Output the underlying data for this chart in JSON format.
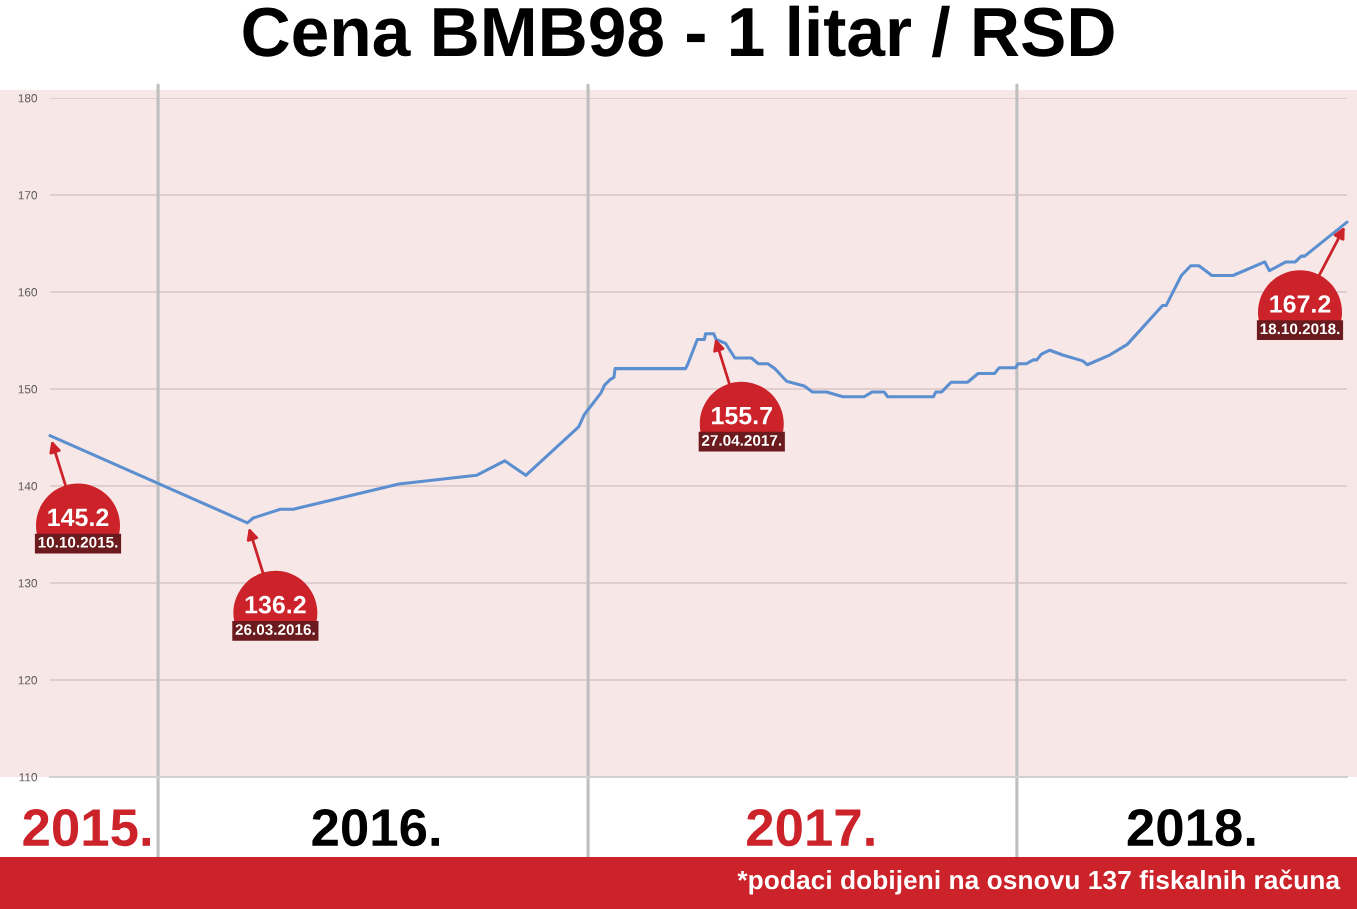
{
  "chart_data": {
    "type": "line",
    "title": "Cena BMB98 - 1 litar / RSD",
    "x": [
      "2015-10-10",
      "2016-03-26",
      "2016-03-31",
      "2016-04-23",
      "2016-05-04",
      "2016-08-02",
      "2016-10-07",
      "2016-10-31",
      "2016-11-18",
      "2017-01-02",
      "2017-01-07",
      "2017-01-21",
      "2017-01-24",
      "2017-01-29",
      "2017-02-01",
      "2017-02-02",
      "2017-04-03",
      "2017-04-05",
      "2017-04-13",
      "2017-04-19",
      "2017-04-20",
      "2017-04-27",
      "2017-04-29",
      "2017-05-07",
      "2017-05-15",
      "2017-05-29",
      "2017-06-04",
      "2017-06-12",
      "2017-06-18",
      "2017-06-28",
      "2017-07-13",
      "2017-07-20",
      "2017-08-01",
      "2017-08-15",
      "2017-09-02",
      "2017-09-09",
      "2017-09-19",
      "2017-09-22",
      "2017-10-31",
      "2017-11-02",
      "2017-11-07",
      "2017-11-15",
      "2017-11-29",
      "2017-12-08",
      "2017-12-22",
      "2017-12-26",
      "2018-01-09",
      "2018-01-11",
      "2018-01-18",
      "2018-01-24",
      "2018-01-27",
      "2018-01-31",
      "2018-02-07",
      "2018-02-18",
      "2018-03-07",
      "2018-03-11",
      "2018-03-30",
      "2018-04-14",
      "2018-05-14",
      "2018-05-17",
      "2018-05-30",
      "2018-06-07",
      "2018-06-14",
      "2018-06-25",
      "2018-07-13",
      "2018-08-09",
      "2018-08-13",
      "2018-08-27",
      "2018-09-04",
      "2018-09-09",
      "2018-09-12",
      "2018-10-18"
    ],
    "series": [
      {
        "color": "#5b8fd0",
        "values": [
          145.2,
          136.2,
          136.7,
          137.6,
          137.6,
          140.2,
          141.1,
          142.6,
          141.1,
          146.1,
          147.4,
          149.6,
          150.4,
          151.0,
          151.2,
          152.1,
          152.1,
          152.6,
          155.1,
          155.1,
          155.7,
          155.7,
          155.1,
          154.7,
          153.2,
          153.2,
          152.6,
          152.6,
          152.1,
          150.8,
          150.3,
          149.7,
          149.7,
          149.2,
          149.2,
          149.7,
          149.7,
          149.2,
          149.2,
          149.7,
          149.7,
          150.7,
          150.7,
          151.6,
          151.6,
          152.2,
          152.2,
          152.6,
          152.6,
          153.0,
          153.0,
          153.6,
          154.0,
          153.5,
          152.9,
          152.5,
          153.5,
          154.6,
          158.6,
          158.6,
          161.7,
          162.7,
          162.7,
          161.7,
          161.7,
          163.1,
          162.2,
          163.1,
          163.1,
          163.7,
          163.7,
          167.2
        ]
      }
    ],
    "xlim": [
      "2015-10-10",
      "2018-10-18"
    ],
    "xticks": [
      {
        "value": "2015-11-11",
        "label": "2015."
      },
      {
        "value": "2016-07-14",
        "label": "2016."
      },
      {
        "value": "2017-07-19",
        "label": "2017."
      },
      {
        "value": "2018-06-08",
        "label": "2018."
      }
    ],
    "ylim": [
      110,
      180
    ],
    "yticks": [
      110,
      120,
      130,
      140,
      150,
      160,
      170,
      180
    ],
    "grid": "y",
    "ref_lines": [
      {
        "axis": "x",
        "value": "2016-01-10",
        "color": "#bfbfbf"
      },
      {
        "axis": "x",
        "value": "2017-01-10",
        "color": "#bfbfbf"
      },
      {
        "axis": "x",
        "value": "2018-01-10",
        "color": "#bfbfbf"
      }
    ],
    "annotations": [
      "*podaci dobijeni na osnovu 137 fiskalnih računa",
      {
        "text": "145.2",
        "x": "2015-10-10",
        "y": 145.2
      },
      "10.10.2015.",
      {
        "text": "136.2",
        "x": "2016-03-26",
        "y": 136.2
      },
      "26.03.2016.",
      {
        "text": "155.7",
        "x": "2017-04-27",
        "y": 155.7
      },
      "27.04.2017.",
      {
        "text": "167.2",
        "x": "2018-10-18",
        "y": 167.2
      },
      "18.10.2018."
    ]
  }
}
